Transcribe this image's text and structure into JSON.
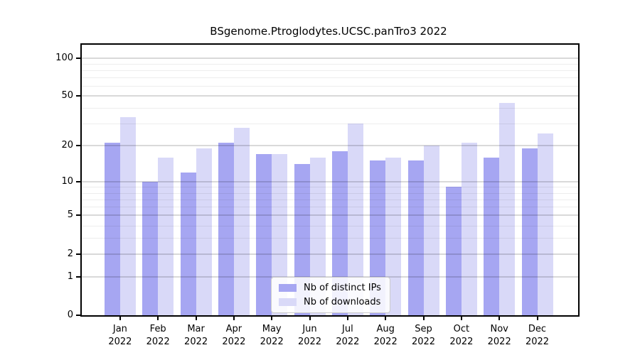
{
  "title": "BSgenome.Ptroglodytes.UCSC.panTro3 2022",
  "colors": {
    "ips_bar": "#a6a6f2",
    "downloads_bar": "#d9d9f8",
    "axis": "#000000",
    "major_grid": "rgba(0,0,0,0.15)",
    "minor_grid": "rgba(0,0,0,0.07)"
  },
  "legend": {
    "items": [
      {
        "label": "Nb of distinct IPs",
        "series": "ips"
      },
      {
        "label": "Nb of downloads",
        "series": "downloads"
      }
    ]
  },
  "chart_data": {
    "type": "bar",
    "title": "BSgenome.Ptroglodytes.UCSC.panTro3 2022",
    "categories": [
      "Jan",
      "Feb",
      "Mar",
      "Apr",
      "May",
      "Jun",
      "Jul",
      "Aug",
      "Sep",
      "Oct",
      "Nov",
      "Dec"
    ],
    "category_year": "2022",
    "series": [
      {
        "name": "Nb of distinct IPs",
        "color": "#a6a6f2",
        "values": [
          21,
          10,
          12,
          21,
          17,
          14,
          18,
          15,
          15,
          9,
          16,
          19
        ]
      },
      {
        "name": "Nb of downloads",
        "color": "#d9d9f8",
        "values": [
          34,
          16,
          19,
          28,
          17,
          16,
          30,
          16,
          20,
          21,
          44,
          25
        ]
      }
    ],
    "xlabel": "",
    "ylabel": "",
    "yscale": "log1p",
    "ylim": [
      0,
      127
    ],
    "yticks": [
      0,
      1,
      2,
      5,
      10,
      20,
      50,
      100
    ],
    "minor_gridlines": [
      3,
      4,
      6,
      7,
      8,
      9,
      30,
      40,
      60,
      70,
      80,
      90
    ],
    "grid": "horizontal",
    "legend_position": "bottom-center-inside"
  }
}
